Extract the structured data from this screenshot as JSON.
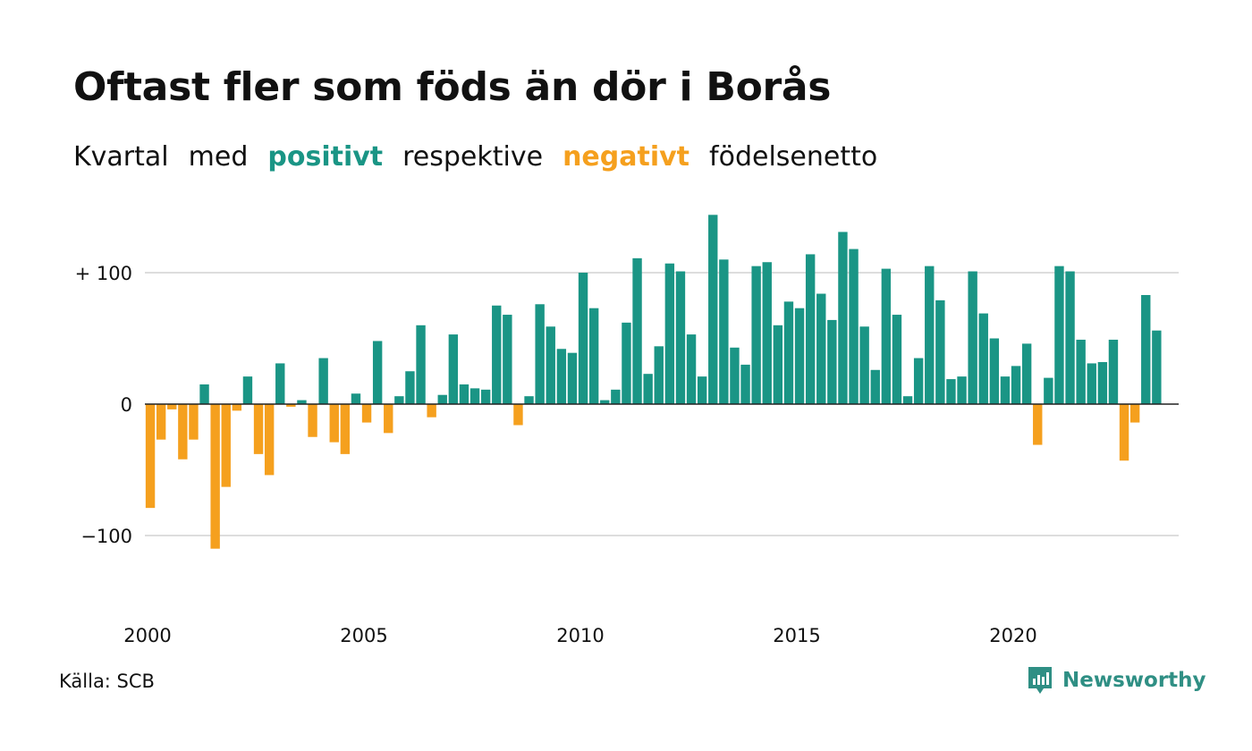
{
  "title": "Oftast fler som föds än dör i Borås",
  "subtitle": {
    "p1": "Kvartal",
    "p2": "med",
    "p3": "positivt",
    "p4": "respektive",
    "p5": "negativt",
    "p6": "födelsenetto"
  },
  "colors": {
    "positive": "#1a9585",
    "negative": "#f5a01e",
    "grid": "#dddddd",
    "axis": "#222222",
    "brand": "#2f8f84"
  },
  "source": "Källa: SCB",
  "brand_name": "Newsworthy",
  "chart_data": {
    "type": "bar",
    "title": "Oftast fler som föds än dör i Borås",
    "subtitle": "Kvartal med positivt respektive negativt födelsenetto",
    "x_start": 2000,
    "periods_per_year": 4,
    "x_ticks": [
      "2000",
      "2005",
      "2010",
      "2015",
      "2020"
    ],
    "y_ticks": [
      {
        "value": 100,
        "label": "+ 100"
      },
      {
        "value": 0,
        "label": "0"
      },
      {
        "value": -100,
        "label": "−100"
      }
    ],
    "ylim": [
      -150,
      150
    ],
    "grid": true,
    "values": [
      -79,
      -27,
      -4,
      -42,
      -27,
      15,
      -110,
      -63,
      -5,
      21,
      -38,
      -54,
      31,
      -2,
      3,
      -25,
      35,
      -29,
      -38,
      8,
      -14,
      48,
      -22,
      6,
      25,
      60,
      -10,
      7,
      53,
      15,
      12,
      11,
      75,
      68,
      -16,
      6,
      76,
      59,
      42,
      39,
      100,
      73,
      3,
      11,
      62,
      111,
      23,
      44,
      107,
      101,
      53,
      21,
      144,
      110,
      43,
      30,
      105,
      108,
      60,
      78,
      73,
      114,
      84,
      64,
      131,
      118,
      59,
      26,
      103,
      68,
      6,
      35,
      105,
      79,
      19,
      21,
      101,
      69,
      50,
      21,
      29,
      46,
      -31,
      20,
      105,
      101,
      49,
      31,
      32,
      49,
      -43,
      -14,
      83,
      56
    ]
  }
}
